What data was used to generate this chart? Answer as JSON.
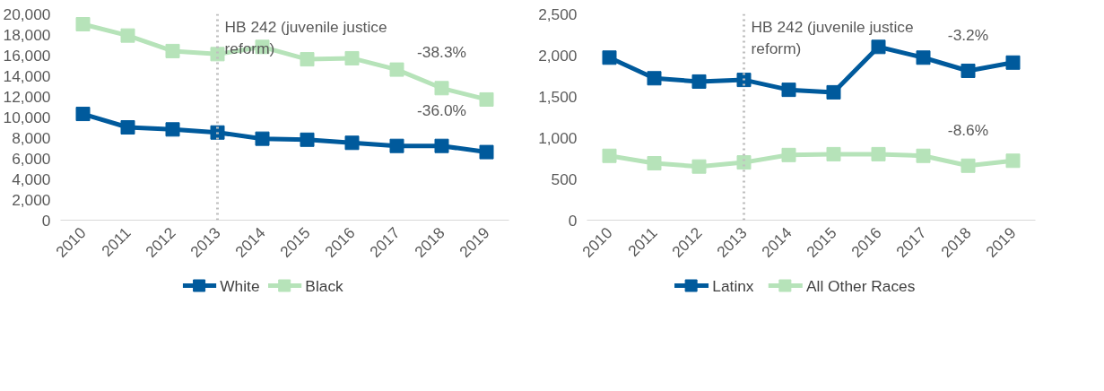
{
  "chart_data": [
    {
      "type": "line",
      "categories": [
        "2010",
        "2011",
        "2012",
        "2013",
        "2014",
        "2015",
        "2016",
        "2017",
        "2018",
        "2019"
      ],
      "ylim": [
        0,
        20000
      ],
      "yticks": [
        {
          "value": 0,
          "label": "0"
        },
        {
          "value": 2000,
          "label": "2,000"
        },
        {
          "value": 4000,
          "label": "4,000"
        },
        {
          "value": 6000,
          "label": "6,000"
        },
        {
          "value": 8000,
          "label": "8,000"
        },
        {
          "value": 10000,
          "label": "10,000"
        },
        {
          "value": 12000,
          "label": "12,000"
        },
        {
          "value": 14000,
          "label": "14,000"
        },
        {
          "value": 16000,
          "label": "16,000"
        },
        {
          "value": 18000,
          "label": "18,000"
        },
        {
          "value": 20000,
          "label": "20,000"
        }
      ],
      "grid": false,
      "legend": "bottom",
      "marker": "square",
      "line_style": "solid",
      "series": [
        {
          "name": "White",
          "color": "#005a9c",
          "values": [
            10300,
            9000,
            8800,
            8500,
            7900,
            7800,
            7500,
            7200,
            7200,
            6600
          ]
        },
        {
          "name": "Black",
          "color": "#b6e3b9",
          "values": [
            19000,
            17900,
            16400,
            16100,
            16800,
            15600,
            15700,
            14600,
            12800,
            11700
          ]
        }
      ],
      "ref_lines": [
        {
          "axis": "x",
          "value": "2013",
          "label": "HB 242 (juvenile justice reform)",
          "color": "#bfbfbf",
          "line_style": "dotted"
        }
      ],
      "annotations": [
        "-36.0%",
        "-38.3%"
      ]
    },
    {
      "type": "line",
      "categories": [
        "2010",
        "2011",
        "2012",
        "2013",
        "2014",
        "2015",
        "2016",
        "2017",
        "2018",
        "2019"
      ],
      "ylim": [
        0,
        2500
      ],
      "yticks": [
        {
          "value": 0,
          "label": "0"
        },
        {
          "value": 500,
          "label": "500"
        },
        {
          "value": 1000,
          "label": "1,000"
        },
        {
          "value": 1500,
          "label": "1,500"
        },
        {
          "value": 2000,
          "label": "2,000"
        },
        {
          "value": 2500,
          "label": "2,500"
        }
      ],
      "grid": false,
      "legend": "bottom",
      "marker": "square",
      "line_style": "solid",
      "series": [
        {
          "name": "Latinx",
          "color": "#005a9c",
          "values": [
            1970,
            1720,
            1680,
            1700,
            1580,
            1550,
            2100,
            1970,
            1810,
            1910
          ]
        },
        {
          "name": "All Other Races",
          "color": "#b6e3b9",
          "values": [
            780,
            690,
            650,
            700,
            790,
            800,
            800,
            780,
            660,
            720
          ]
        }
      ],
      "ref_lines": [
        {
          "axis": "x",
          "value": "2013",
          "label": "HB 242 (juvenile justice reform)",
          "color": "#bfbfbf",
          "line_style": "dotted"
        }
      ],
      "annotations": [
        "-3.2%",
        "-8.6%"
      ]
    }
  ]
}
